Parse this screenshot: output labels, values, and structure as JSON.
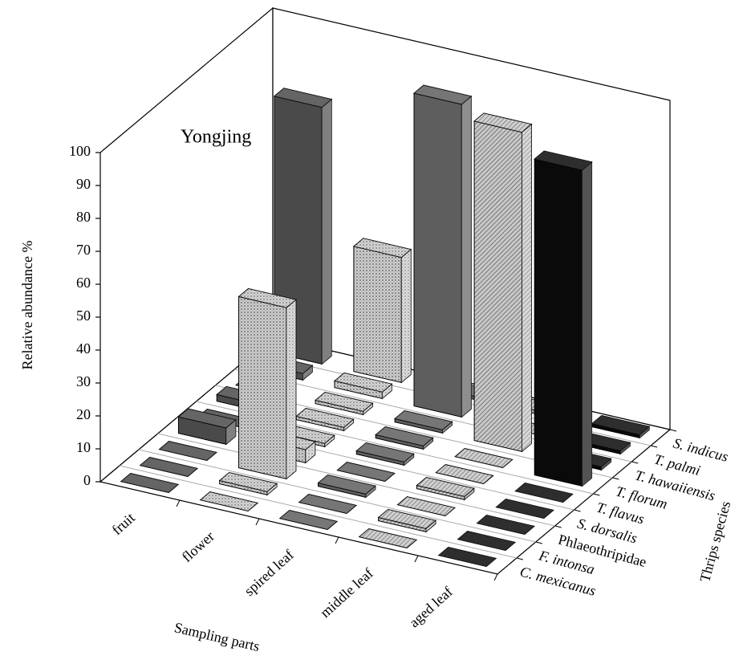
{
  "chart_data": {
    "type": "bar3d",
    "annotation": "Yongjing",
    "xlabel": "Sampling parts",
    "zlabel": "Relative abundance %",
    "depth_label": "Thrips species",
    "categories": [
      "fruit",
      "flower",
      "spired leaf",
      "middle leaf",
      "aged leaf"
    ],
    "depth_categories": [
      "C. mexicanus",
      "F. intonsa",
      "Phlaeothripidae",
      "S. dorsalis",
      "T. flavus",
      "T. florum",
      "T. hawaiiensis",
      "T. palmi",
      "S. indicus"
    ],
    "values": [
      [
        0,
        0,
        0,
        5,
        0,
        2,
        0,
        2,
        78
      ],
      [
        0,
        1,
        52,
        4,
        1,
        1,
        1,
        2,
        38
      ],
      [
        0,
        0,
        1,
        0,
        1,
        1,
        1,
        95,
        1
      ],
      [
        0,
        1,
        0,
        1,
        0,
        0,
        97,
        0,
        1
      ],
      [
        0,
        0,
        0,
        0,
        0,
        96,
        1,
        1,
        1
      ]
    ],
    "colors": [
      "#4a4a4a",
      "#c4c4c4",
      "#5e5e5e",
      "#b4b4b4",
      "#0a0a0a"
    ],
    "patterns": [
      null,
      "dots",
      null,
      "hatch",
      null
    ],
    "ylim": [
      0,
      100
    ],
    "yticks": [
      0,
      10,
      20,
      30,
      40,
      50,
      60,
      70,
      80,
      90,
      100
    ]
  }
}
